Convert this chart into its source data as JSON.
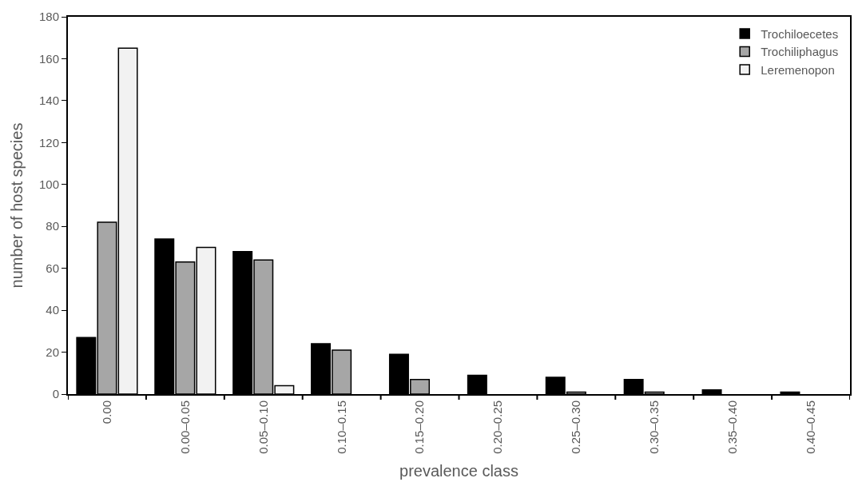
{
  "chart_data": {
    "type": "bar",
    "xlabel": "prevalence class",
    "ylabel": "number of host species",
    "categories": [
      "0.00",
      "0.00–0.05",
      "0.05–0.10",
      "0.10–0.15",
      "0.15–0.20",
      "0.20–0.25",
      "0.25–0.30",
      "0.30–0.35",
      "0.35–0.40",
      "0.40–0.45"
    ],
    "series": [
      {
        "name": "Trochiloecetes",
        "color": "#000000",
        "values": [
          27,
          74,
          68,
          24,
          19,
          9,
          8,
          7,
          2,
          1
        ]
      },
      {
        "name": "Trochiliphagus",
        "color": "#a6a6a6",
        "values": [
          82,
          63,
          64,
          21,
          7,
          null,
          1,
          1,
          null,
          null
        ]
      },
      {
        "name": "Leremenopon",
        "color": "#f2f2f2",
        "values": [
          165,
          70,
          4,
          null,
          null,
          null,
          null,
          null,
          null,
          null
        ]
      }
    ],
    "ylim": [
      0,
      180
    ],
    "yticks": [
      0,
      20,
      40,
      60,
      80,
      100,
      120,
      140,
      160,
      180
    ],
    "legend": "top right"
  }
}
